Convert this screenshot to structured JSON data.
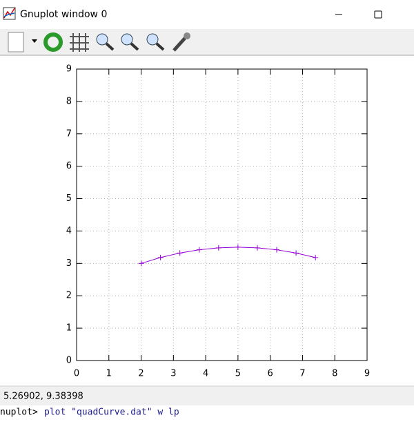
{
  "window": {
    "title": "Gnuplot window 0"
  },
  "chart_data": {
    "type": "line",
    "x": [
      2,
      2.6,
      3.2,
      3.8,
      4.4,
      5.0,
      5.6,
      6.2,
      6.8,
      7.4
    ],
    "series": [
      {
        "color": "#9400d3",
        "values": [
          3.0,
          3.18,
          3.32,
          3.42,
          3.48,
          3.5,
          3.48,
          3.42,
          3.32,
          3.18
        ]
      }
    ],
    "xlim": [
      0,
      9
    ],
    "ylim": [
      0,
      9
    ],
    "xticks": [
      0,
      1,
      2,
      3,
      4,
      5,
      6,
      7,
      8,
      9
    ],
    "yticks": [
      0,
      1,
      2,
      3,
      4,
      5,
      6,
      7,
      8,
      9
    ],
    "grid": true,
    "marker": "plus"
  },
  "status": {
    "coordinates": "5.26902,  9.38398"
  },
  "console": {
    "prompt": "nuplot>",
    "command": "plot \"quadCurve.dat\" w lp"
  }
}
